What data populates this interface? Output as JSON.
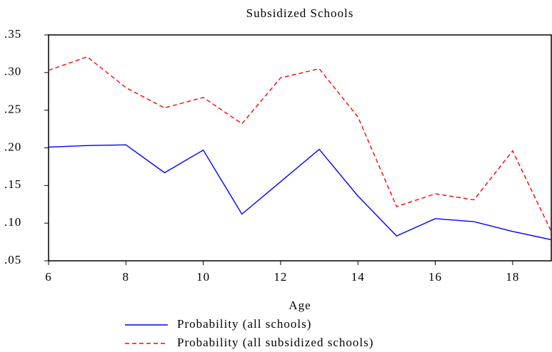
{
  "chart_data": {
    "type": "line",
    "title": "Subsidized Schools",
    "x_label": "Age",
    "x": [
      6,
      7,
      8,
      9,
      10,
      11,
      12,
      13,
      14,
      15,
      16,
      17,
      18,
      19
    ],
    "series": [
      {
        "name": "Probability (all schools)",
        "color": "#0000ff",
        "dash": "solid",
        "values": [
          0.201,
          0.203,
          0.204,
          0.167,
          0.197,
          0.112,
          0.155,
          0.198,
          0.136,
          0.083,
          0.106,
          0.102,
          0.089,
          0.078
        ]
      },
      {
        "name": "Probability (all subsidized schools)",
        "color": "#ff0000",
        "dash": "dashed",
        "values": [
          0.303,
          0.321,
          0.28,
          0.253,
          0.267,
          0.232,
          0.293,
          0.305,
          0.241,
          0.122,
          0.139,
          0.131,
          0.196,
          0.089
        ]
      }
    ],
    "xlim": [
      6,
      19
    ],
    "xticks": [
      6,
      8,
      10,
      12,
      14,
      16,
      18
    ],
    "ylim": [
      0.05,
      0.35
    ],
    "yticks": [
      {
        "value": 0.05,
        "label": ".05"
      },
      {
        "value": 0.1,
        "label": ".10"
      },
      {
        "value": 0.15,
        "label": ".15"
      },
      {
        "value": 0.2,
        "label": ".20"
      },
      {
        "value": 0.25,
        "label": ".25"
      },
      {
        "value": 0.3,
        "label": ".30"
      },
      {
        "value": 0.35,
        "label": ".35"
      }
    ],
    "grid": false,
    "legend": "bottom"
  }
}
